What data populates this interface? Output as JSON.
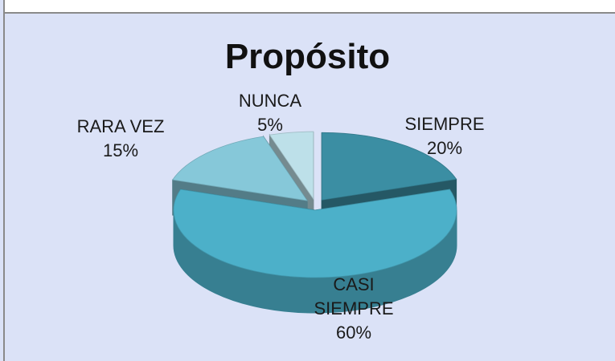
{
  "chart_data": {
    "type": "pie",
    "title": "Propósito",
    "categories": [
      "SIEMPRE",
      "CASI SIEMPRE",
      "RARA VEZ",
      "NUNCA"
    ],
    "values": [
      20,
      60,
      15,
      5
    ],
    "value_labels": [
      "20%",
      "60%",
      "15%",
      "5%"
    ],
    "colors": [
      "#3b8ea3",
      "#4cb0c9",
      "#86c8d9",
      "#bde0e9"
    ],
    "exploded": true,
    "three_d": true
  }
}
